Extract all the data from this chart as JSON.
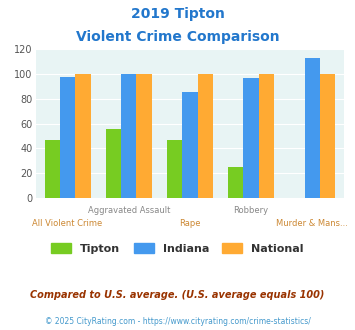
{
  "title_line1": "2019 Tipton",
  "title_line2": "Violent Crime Comparison",
  "categories": [
    "All Violent Crime",
    "Aggravated Assault",
    "Rape",
    "Robbery",
    "Murder & Mans..."
  ],
  "tipton": [
    47,
    56,
    47,
    25,
    0
  ],
  "indiana": [
    98,
    100,
    86,
    97,
    113
  ],
  "national": [
    100,
    100,
    100,
    100,
    100
  ],
  "tipton_color": "#77cc22",
  "indiana_color": "#4499ee",
  "national_color": "#ffaa33",
  "bg_color": "#e8f4f4",
  "ylim": [
    0,
    120
  ],
  "yticks": [
    0,
    20,
    40,
    60,
    80,
    100,
    120
  ],
  "legend_labels": [
    "Tipton",
    "Indiana",
    "National"
  ],
  "footnote1": "Compared to U.S. average. (U.S. average equals 100)",
  "footnote2": "© 2025 CityRating.com - https://www.cityrating.com/crime-statistics/",
  "title_color": "#2277cc",
  "xlabel_top_color": "#888888",
  "xlabel_bot_color": "#cc8833",
  "legend_text_color": "#333333",
  "footnote1_color": "#993300",
  "footnote2_color": "#4499cc"
}
